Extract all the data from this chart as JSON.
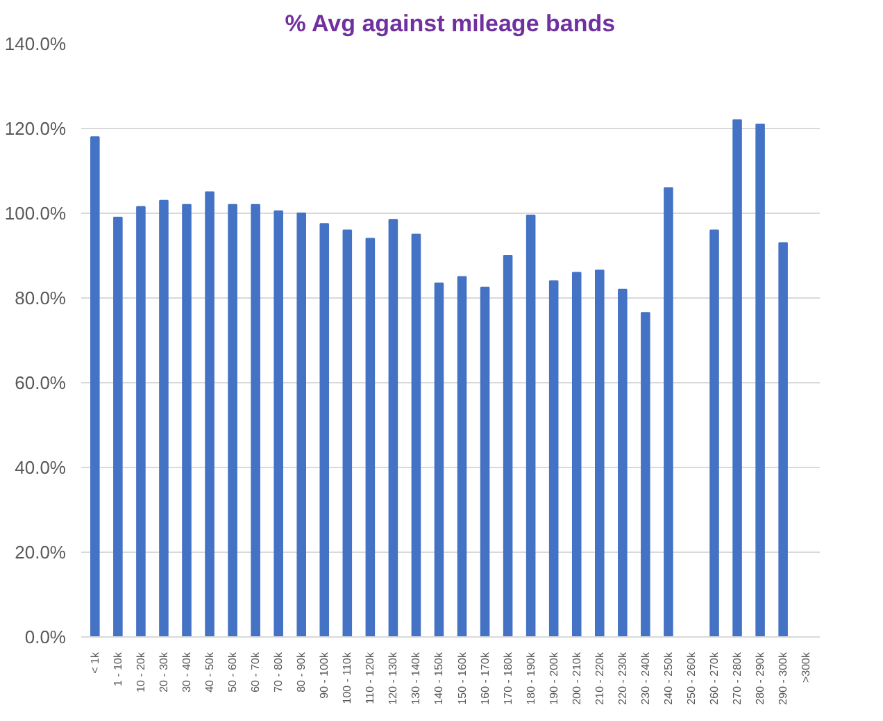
{
  "chart_data": {
    "type": "bar",
    "title": "% Avg against mileage bands",
    "categories": [
      "< 1k",
      "1 - 10k",
      "10 - 20k",
      "20 - 30k",
      "30 - 40k",
      "40 - 50k",
      "50 - 60k",
      "60 - 70k",
      "70 - 80k",
      "80 - 90k",
      "90 - 100k",
      "100 - 110k",
      "110 - 120k",
      "120 - 130k",
      "130 - 140k",
      "140 - 150k",
      "150 - 160k",
      "160 - 170k",
      "170 - 180k",
      "180 - 190k",
      "190 - 200k",
      "200 - 210k",
      "210 - 220k",
      "220 - 230k",
      "230 - 240k",
      "240 - 250k",
      "250 - 260k",
      "260 - 270k",
      "270 - 280k",
      "280 - 290k",
      "290 - 300k",
      ">300k"
    ],
    "values": [
      118,
      99,
      101.5,
      103,
      102,
      105,
      102,
      102,
      100.5,
      100,
      97.5,
      96,
      94,
      98.5,
      95,
      83.5,
      85,
      82.5,
      90,
      99.5,
      84,
      86,
      86.5,
      82,
      76.5,
      106,
      null,
      96,
      122,
      121,
      93,
      null
    ],
    "color": "#4472c4",
    "ylim": [
      0,
      140
    ],
    "yticks": [
      {
        "value": 0,
        "label": "0.0%"
      },
      {
        "value": 20,
        "label": "20.0%"
      },
      {
        "value": 40,
        "label": "40.0%"
      },
      {
        "value": 60,
        "label": "60.0%"
      },
      {
        "value": 80,
        "label": "80.0%"
      },
      {
        "value": 100,
        "label": "100.0%"
      },
      {
        "value": 120,
        "label": "120.0%"
      },
      {
        "value": 140,
        "label": "140.0%"
      }
    ],
    "grid": "y"
  }
}
